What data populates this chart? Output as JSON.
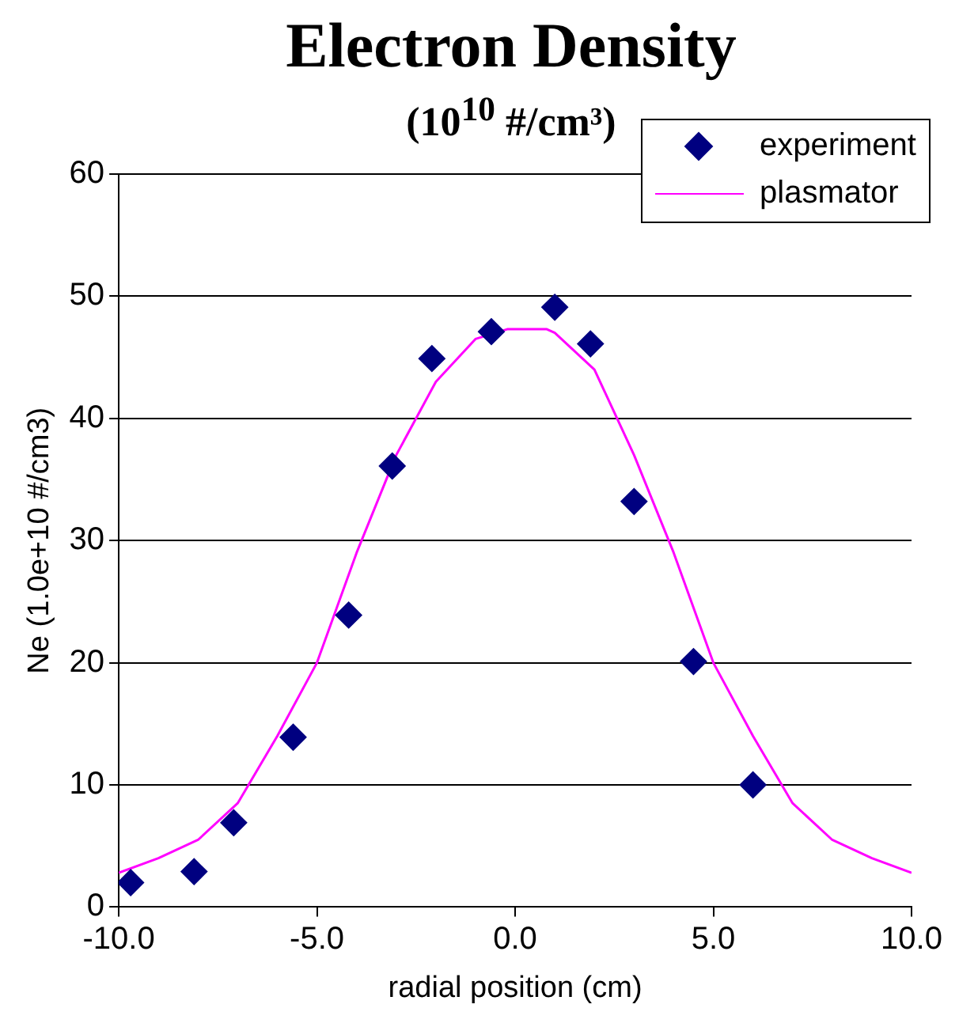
{
  "chart_data": {
    "type": "scatter",
    "title": "Electron Density",
    "subtitle": "(10$^{10}$ #/cm³)",
    "xlabel": "radial position (cm)",
    "ylabel": "Ne (1.0e+10 #/cm3)",
    "xlim": [
      -10,
      10
    ],
    "xticks": [
      {
        "value": -10,
        "label": "-10.0"
      },
      {
        "value": -5,
        "label": "-5.0"
      },
      {
        "value": 0,
        "label": "0.0"
      },
      {
        "value": 5,
        "label": "5.0"
      },
      {
        "value": 10,
        "label": "10.0"
      }
    ],
    "ylim": [
      0,
      60
    ],
    "yticks": [
      0,
      10,
      20,
      30,
      40,
      50,
      60
    ],
    "grid": "y",
    "legend": "top right",
    "series": [
      {
        "name": "experiment",
        "type": "scatter",
        "color": "#000080",
        "marker": "diamond",
        "x": [
          -9.7,
          -8.1,
          -7.1,
          -5.6,
          -4.2,
          -3.1,
          -2.1,
          -0.6,
          1.0,
          1.9,
          3.0,
          4.5,
          6.0
        ],
        "values": [
          2.0,
          2.9,
          6.9,
          13.9,
          23.9,
          36.1,
          44.9,
          47.1,
          49.1,
          46.1,
          33.2,
          20.1,
          10.0
        ]
      },
      {
        "name": "plasmator",
        "type": "line",
        "color": "#ff00ff",
        "marker": "none",
        "x": [
          -10,
          -9,
          -8,
          -7,
          -6,
          -5,
          -4,
          -3,
          -2,
          -1,
          -0.2,
          0.8,
          1,
          2,
          3,
          4,
          5,
          6,
          7,
          8,
          9,
          10
        ],
        "values": [
          2.8,
          4,
          5.5,
          8.5,
          14,
          20,
          29,
          37,
          43,
          46.5,
          47.3,
          47.3,
          47,
          44,
          37,
          29,
          20,
          14,
          8.5,
          5.5,
          4,
          2.8
        ]
      }
    ]
  }
}
